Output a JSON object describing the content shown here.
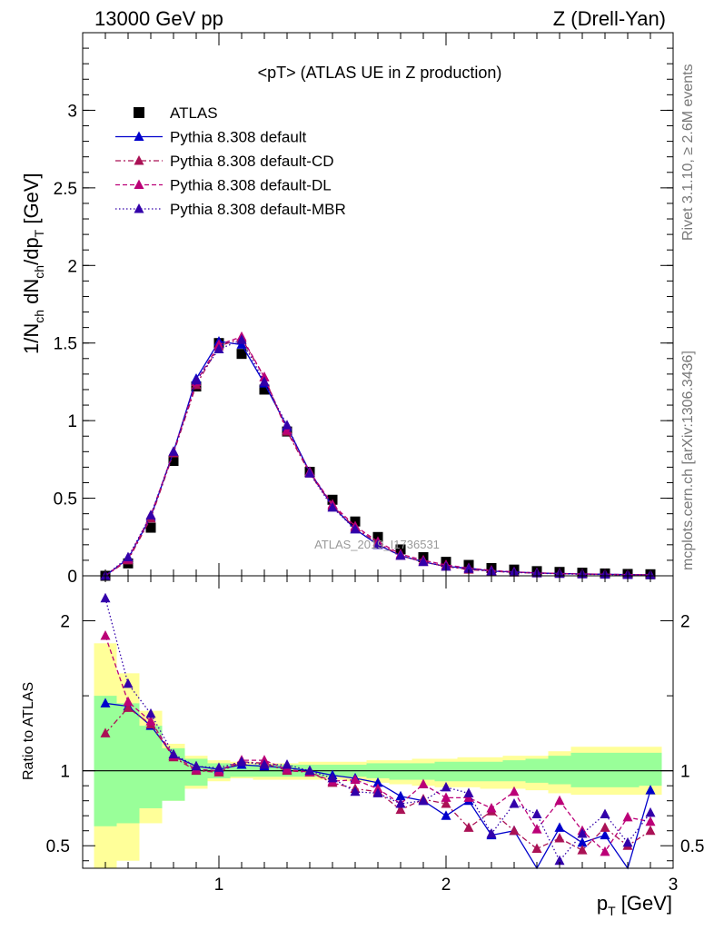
{
  "header": {
    "left": "13000 GeV pp",
    "right": "Z (Drell-Yan)"
  },
  "side": {
    "top": "Rivet 3.1.10, ≥ 2.6M events",
    "bottom": "mcplots.cern.ch [arXiv:1306.3436]"
  },
  "colors": {
    "atlas": "#000000",
    "default": "#0000cc",
    "cd": "#aa1155",
    "dl": "#bb0077",
    "mbr": "#3300aa",
    "band_yellow": "#ffff99",
    "band_green": "#99ff99"
  },
  "chart_data": [
    {
      "type": "line",
      "title": "<pT> (ATLAS UE in Z production)",
      "watermark": "ATLAS_2019_I1736531",
      "xlabel": "p_T [GeV]",
      "ylabel": "1/N_ch dN_ch/dp_T [GeV]",
      "xlim": [
        0.4,
        3.0
      ],
      "ylim": [
        0,
        3.5
      ],
      "yticks": [
        "0",
        "0.5",
        "1",
        "1.5",
        "2",
        "2.5",
        "3"
      ],
      "legend_position": "top-left",
      "x": [
        0.5,
        0.6,
        0.7,
        0.8,
        0.9,
        1.0,
        1.1,
        1.2,
        1.3,
        1.4,
        1.5,
        1.6,
        1.7,
        1.8,
        1.9,
        2.0,
        2.1,
        2.2,
        2.3,
        2.4,
        2.5,
        2.6,
        2.7,
        2.8,
        2.9
      ],
      "series": [
        {
          "name": "ATLAS",
          "style": "square",
          "values": [
            0.0,
            0.08,
            0.31,
            0.74,
            1.22,
            1.5,
            1.43,
            1.2,
            0.93,
            0.67,
            0.49,
            0.35,
            0.25,
            0.17,
            0.12,
            0.09,
            0.07,
            0.05,
            0.04,
            0.03,
            0.025,
            0.02,
            0.015,
            0.012,
            0.01
          ]
        },
        {
          "name": "Pythia 8.308 default",
          "style": "solid",
          "values": [
            0.0,
            0.11,
            0.38,
            0.8,
            1.27,
            1.51,
            1.49,
            1.24,
            0.96,
            0.67,
            0.45,
            0.3,
            0.2,
            0.13,
            0.09,
            0.06,
            0.05,
            0.03,
            0.025,
            0.018,
            0.015,
            0.012,
            0.01,
            0.008,
            0.006
          ]
        },
        {
          "name": "Pythia 8.308 default-CD",
          "style": "dashdot",
          "values": [
            0.0,
            0.1,
            0.37,
            0.79,
            1.23,
            1.48,
            1.53,
            1.28,
            0.93,
            0.66,
            0.45,
            0.31,
            0.21,
            0.13,
            0.09,
            0.06,
            0.04,
            0.03,
            0.022,
            0.017,
            0.014,
            0.011,
            0.009,
            0.007,
            0.006
          ]
        },
        {
          "name": "Pythia 8.308 default-DL",
          "style": "dashed",
          "values": [
            0.0,
            0.11,
            0.39,
            0.8,
            1.25,
            1.49,
            1.54,
            1.28,
            0.94,
            0.67,
            0.46,
            0.32,
            0.22,
            0.14,
            0.1,
            0.07,
            0.05,
            0.035,
            0.025,
            0.019,
            0.015,
            0.012,
            0.01,
            0.008,
            0.006
          ]
        },
        {
          "name": "Pythia 8.308 default-MBR",
          "style": "dotted",
          "values": [
            0.0,
            0.12,
            0.39,
            0.8,
            1.26,
            1.46,
            1.52,
            1.25,
            0.97,
            0.66,
            0.44,
            0.3,
            0.2,
            0.13,
            0.09,
            0.06,
            0.045,
            0.03,
            0.023,
            0.017,
            0.013,
            0.01,
            0.008,
            0.006,
            0.005
          ]
        }
      ]
    },
    {
      "type": "line",
      "xlabel": "p_T [GeV]",
      "ylabel": "Ratio to ATLAS",
      "xlim": [
        0.4,
        3.0
      ],
      "ylim": [
        0.35,
        2.3
      ],
      "yticks": [
        "0.5",
        "1",
        "2"
      ],
      "xticks": [
        "1",
        "2",
        "3"
      ],
      "reference_line": 1.0,
      "x": [
        0.5,
        0.6,
        0.7,
        0.8,
        0.9,
        1.0,
        1.1,
        1.2,
        1.3,
        1.4,
        1.5,
        1.6,
        1.7,
        1.8,
        1.9,
        2.0,
        2.1,
        2.2,
        2.3,
        2.4,
        2.5,
        2.6,
        2.7,
        2.8,
        2.9
      ],
      "bands": {
        "yellow_low": [
          0.35,
          0.4,
          0.65,
          0.8,
          0.88,
          0.93,
          0.95,
          0.94,
          0.94,
          0.94,
          0.94,
          0.93,
          0.92,
          0.91,
          0.9,
          0.89,
          0.89,
          0.88,
          0.88,
          0.87,
          0.85,
          0.84,
          0.84,
          0.84,
          0.84
        ],
        "yellow_high": [
          1.85,
          1.65,
          1.4,
          1.18,
          1.1,
          1.07,
          1.06,
          1.05,
          1.05,
          1.06,
          1.06,
          1.06,
          1.07,
          1.07,
          1.08,
          1.08,
          1.09,
          1.09,
          1.1,
          1.1,
          1.13,
          1.16,
          1.16,
          1.16,
          1.16
        ],
        "green_low": [
          0.63,
          0.65,
          0.75,
          0.8,
          0.9,
          0.95,
          0.96,
          0.96,
          0.96,
          0.96,
          0.96,
          0.96,
          0.95,
          0.94,
          0.94,
          0.93,
          0.93,
          0.93,
          0.93,
          0.92,
          0.91,
          0.89,
          0.89,
          0.89,
          0.9
        ],
        "green_high": [
          1.5,
          1.45,
          1.3,
          1.15,
          1.08,
          1.05,
          1.04,
          1.04,
          1.04,
          1.04,
          1.04,
          1.04,
          1.05,
          1.05,
          1.05,
          1.06,
          1.06,
          1.06,
          1.07,
          1.08,
          1.1,
          1.12,
          1.12,
          1.12,
          1.12
        ]
      },
      "series": [
        {
          "name": "Pythia 8.308 default",
          "style": "solid",
          "values": [
            1.45,
            1.43,
            1.3,
            1.1,
            1.03,
            1.01,
            1.04,
            1.03,
            1.02,
            1.0,
            0.97,
            0.95,
            0.92,
            0.83,
            0.8,
            0.7,
            0.8,
            0.57,
            0.6,
            0.3,
            0.62,
            0.52,
            0.57,
            0.3,
            0.87
          ]
        },
        {
          "name": "Pythia 8.308 default-CD",
          "style": "dashdot",
          "values": [
            1.25,
            1.42,
            1.31,
            1.09,
            1.0,
            0.99,
            1.06,
            1.05,
            1.0,
            0.99,
            0.92,
            0.88,
            0.86,
            0.74,
            0.81,
            0.78,
            0.62,
            0.73,
            0.6,
            0.48,
            0.55,
            0.47,
            0.62,
            0.5,
            0.6
          ]
        },
        {
          "name": "Pythia 8.308 default-DL",
          "style": "dashed",
          "values": [
            1.9,
            1.46,
            1.33,
            1.1,
            1.01,
            1.0,
            1.07,
            1.07,
            1.01,
            0.99,
            0.93,
            0.94,
            0.88,
            0.78,
            0.91,
            0.82,
            0.82,
            0.75,
            0.86,
            0.61,
            0.8,
            0.6,
            0.46,
            0.69,
            0.66
          ]
        },
        {
          "name": "Pythia 8.308 default-MBR",
          "style": "dotted",
          "values": [
            2.15,
            1.58,
            1.38,
            1.11,
            1.03,
            1.02,
            1.06,
            1.04,
            1.04,
            1.0,
            0.95,
            0.86,
            0.85,
            0.78,
            0.8,
            0.89,
            0.85,
            0.58,
            0.78,
            0.71,
            0.4,
            0.58,
            0.71,
            0.52,
            0.72
          ]
        }
      ]
    }
  ]
}
